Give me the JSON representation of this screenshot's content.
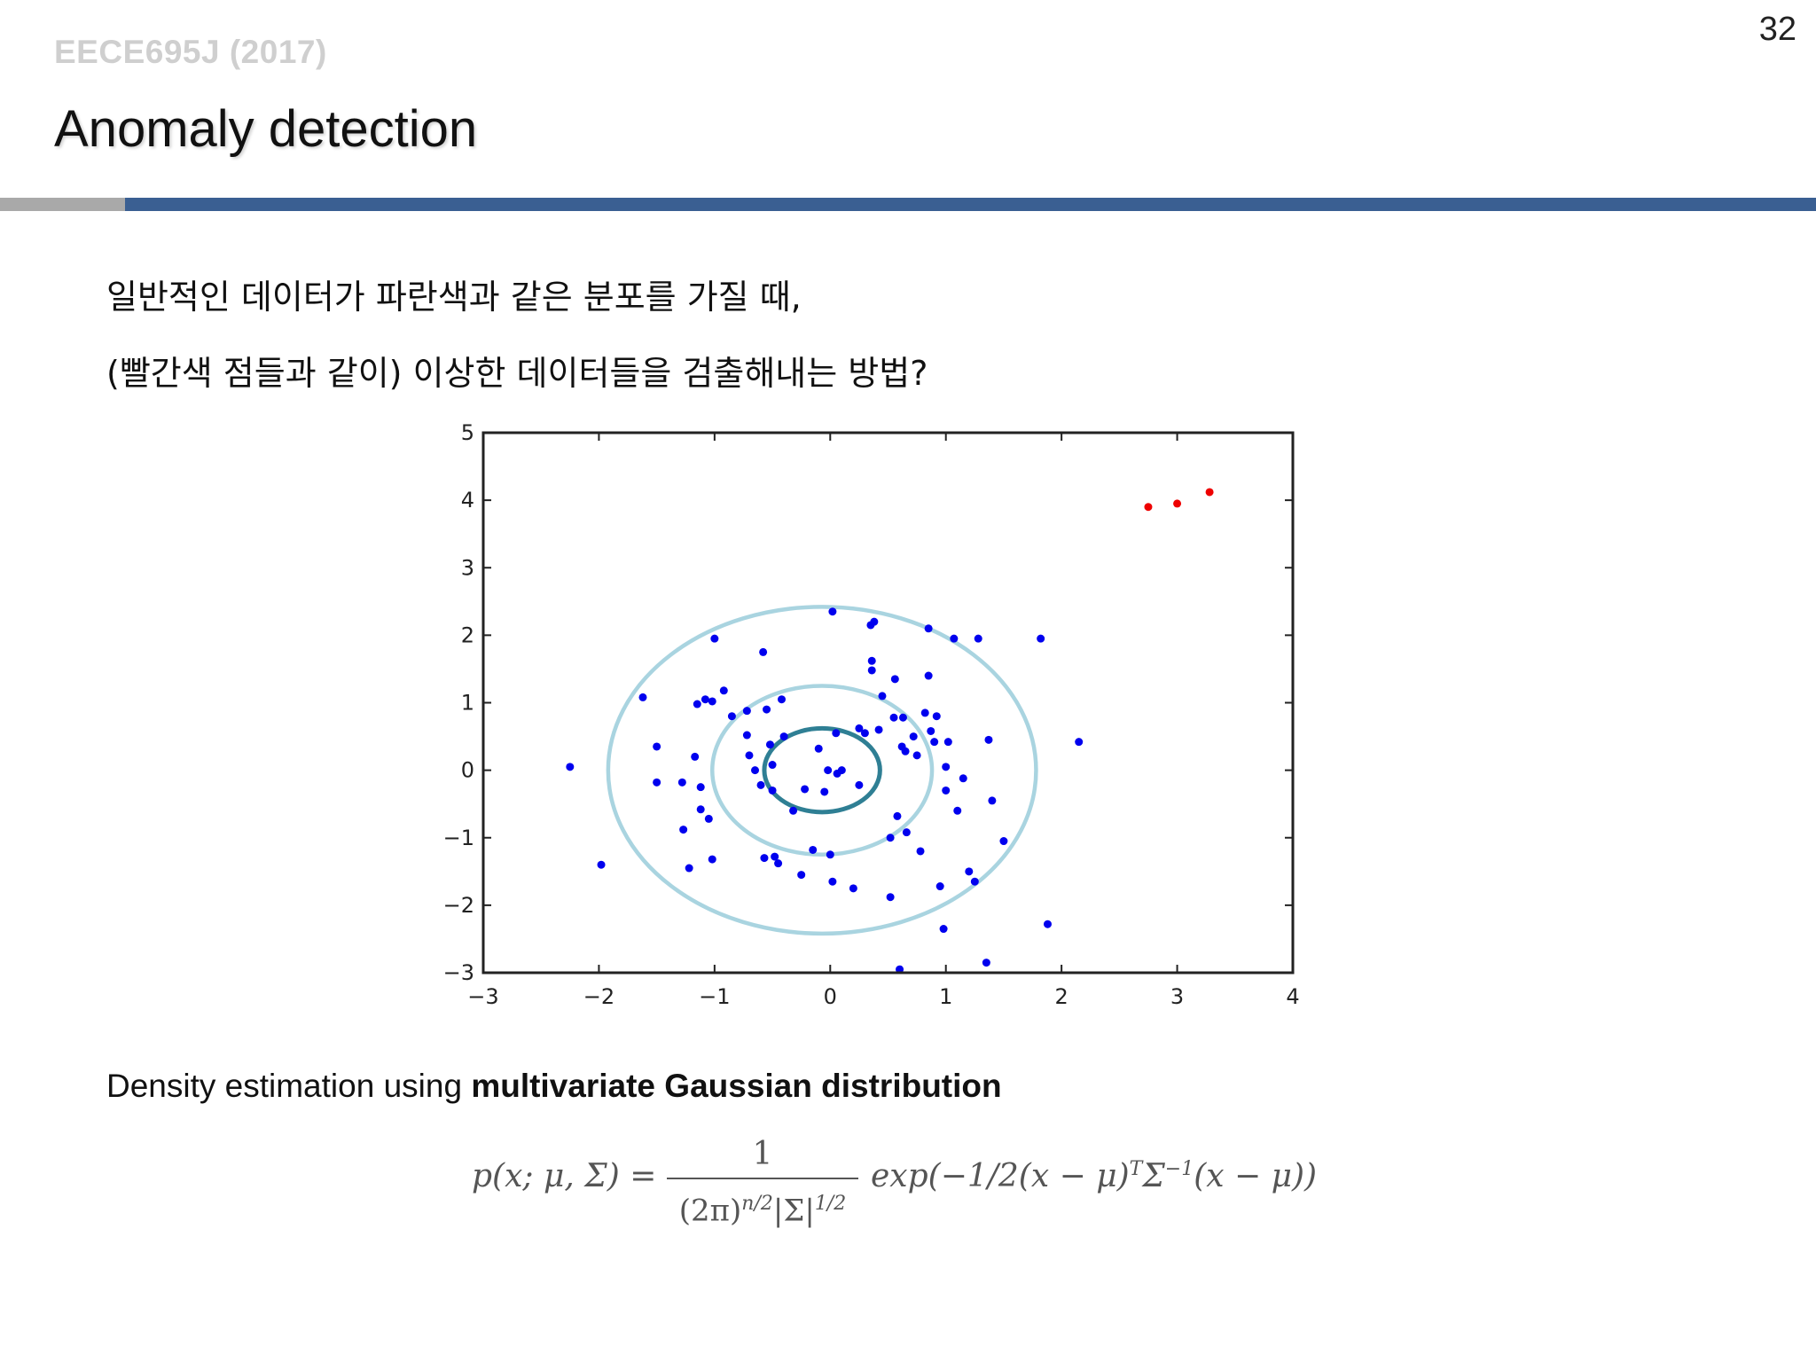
{
  "header": {
    "course": "EECE695J (2017)",
    "page_number": "32",
    "title": "Anomaly detection"
  },
  "body": {
    "line1": "일반적인 데이터가 파란색과 같은 분포를 가질 때,",
    "line2": "(빨간색 점들과 같이) 이상한 데이터들을 검출해내는 방법?",
    "density_prefix": "Density estimation using ",
    "density_bold": "multivariate Gaussian distribution"
  },
  "formula": {
    "lhs": "p(x; μ, Σ) =",
    "numerator": "1",
    "denominator_base": "(2π)",
    "denominator_exp1": "n/2",
    "denominator_mid": "|Σ|",
    "denominator_exp2": "1/2",
    "rhs_a": "exp(−1/2(x − μ)",
    "rhs_sup1": "T",
    "rhs_b": "Σ",
    "rhs_sup2": "−1",
    "rhs_c": "(x − μ))"
  },
  "chart_data": {
    "type": "scatter",
    "xlim": [
      -3,
      4
    ],
    "ylim": [
      -3,
      5
    ],
    "xticks": [
      -3,
      -2,
      -1,
      0,
      1,
      2,
      3,
      4
    ],
    "yticks": [
      -3,
      -2,
      -1,
      0,
      1,
      2,
      3,
      4,
      5
    ],
    "xtick_labels": [
      "−3",
      "−2",
      "−1",
      "0",
      "1",
      "2",
      "3",
      "4"
    ],
    "ytick_labels": [
      "−3",
      "−2",
      "−1",
      "0",
      "1",
      "2",
      "3",
      "4",
      "5"
    ],
    "grid": false,
    "colors": {
      "normal": "#0000ee",
      "anomaly": "#ee0000",
      "inner_contour": "#2f7f94",
      "outer_contour": "#a9d4e0"
    },
    "series": [
      {
        "points": [
          [
            -2.25,
            0.05
          ],
          [
            -1.98,
            -1.4
          ],
          [
            -1.62,
            1.08
          ],
          [
            -1.5,
            0.35
          ],
          [
            -1.5,
            -0.18
          ],
          [
            -1.28,
            -0.18
          ],
          [
            -1.27,
            -0.88
          ],
          [
            -1.22,
            -1.45
          ],
          [
            -1.17,
            0.2
          ],
          [
            -1.15,
            0.98
          ],
          [
            -1.12,
            -0.25
          ],
          [
            -1.12,
            -0.58
          ],
          [
            -1.08,
            1.05
          ],
          [
            -1.05,
            -0.72
          ],
          [
            -1.02,
            -1.32
          ],
          [
            -1.02,
            1.02
          ],
          [
            -1.0,
            1.95
          ],
          [
            -0.92,
            1.18
          ],
          [
            -0.85,
            0.8
          ],
          [
            -0.72,
            0.88
          ],
          [
            -0.72,
            0.52
          ],
          [
            -0.7,
            0.22
          ],
          [
            -0.65,
            0.0
          ],
          [
            -0.6,
            -0.22
          ],
          [
            -0.58,
            1.75
          ],
          [
            -0.57,
            -1.3
          ],
          [
            -0.55,
            0.9
          ],
          [
            -0.52,
            0.38
          ],
          [
            -0.5,
            0.08
          ],
          [
            -0.5,
            -0.3
          ],
          [
            -0.48,
            -1.28
          ],
          [
            -0.45,
            -1.38
          ],
          [
            -0.42,
            1.05
          ],
          [
            -0.4,
            0.5
          ],
          [
            -0.32,
            -0.6
          ],
          [
            -0.25,
            -1.55
          ],
          [
            -0.22,
            -0.28
          ],
          [
            -0.15,
            -1.18
          ],
          [
            -0.1,
            0.32
          ],
          [
            -0.05,
            -0.32
          ],
          [
            -0.02,
            0.0
          ],
          [
            0.02,
            2.35
          ],
          [
            0.0,
            -1.25
          ],
          [
            0.02,
            -1.65
          ],
          [
            0.05,
            0.55
          ],
          [
            0.06,
            -0.05
          ],
          [
            0.1,
            0.0
          ],
          [
            0.2,
            -1.75
          ],
          [
            0.25,
            0.62
          ],
          [
            0.25,
            -0.22
          ],
          [
            0.3,
            0.55
          ],
          [
            0.35,
            2.15
          ],
          [
            0.38,
            2.2
          ],
          [
            0.36,
            1.62
          ],
          [
            0.36,
            1.48
          ],
          [
            0.42,
            0.6
          ],
          [
            0.45,
            1.1
          ],
          [
            0.52,
            -1.0
          ],
          [
            0.52,
            -1.88
          ],
          [
            0.55,
            0.78
          ],
          [
            0.56,
            1.35
          ],
          [
            0.58,
            -0.68
          ],
          [
            0.6,
            -2.95
          ],
          [
            0.62,
            0.35
          ],
          [
            0.63,
            0.78
          ],
          [
            0.65,
            0.28
          ],
          [
            0.66,
            -0.92
          ],
          [
            0.72,
            0.5
          ],
          [
            0.75,
            0.22
          ],
          [
            0.78,
            -1.2
          ],
          [
            0.82,
            0.85
          ],
          [
            0.85,
            2.1
          ],
          [
            0.85,
            1.4
          ],
          [
            0.87,
            0.58
          ],
          [
            0.9,
            0.42
          ],
          [
            0.92,
            0.8
          ],
          [
            0.95,
            -1.72
          ],
          [
            0.98,
            -2.35
          ],
          [
            1.0,
            0.05
          ],
          [
            1.0,
            -0.3
          ],
          [
            1.02,
            0.42
          ],
          [
            1.07,
            1.95
          ],
          [
            1.1,
            -0.6
          ],
          [
            1.15,
            -0.12
          ],
          [
            1.2,
            -1.5
          ],
          [
            1.25,
            -1.65
          ],
          [
            1.28,
            1.95
          ],
          [
            1.35,
            -2.85
          ],
          [
            1.37,
            0.45
          ],
          [
            1.4,
            -0.45
          ],
          [
            1.5,
            -1.05
          ],
          [
            1.82,
            1.95
          ],
          [
            1.88,
            -2.28
          ],
          [
            2.15,
            0.42
          ]
        ]
      },
      {
        "points": [
          [
            2.75,
            3.9
          ],
          [
            3.0,
            3.95
          ],
          [
            3.28,
            4.12
          ]
        ]
      }
    ],
    "contours": [
      {
        "center": [
          -0.07,
          0.0
        ],
        "rx": 0.5,
        "ry": 0.62
      },
      {
        "center": [
          -0.07,
          0.0
        ],
        "rx": 0.95,
        "ry": 1.25
      },
      {
        "center": [
          -0.07,
          0.0
        ],
        "rx": 1.85,
        "ry": 2.42
      }
    ]
  }
}
